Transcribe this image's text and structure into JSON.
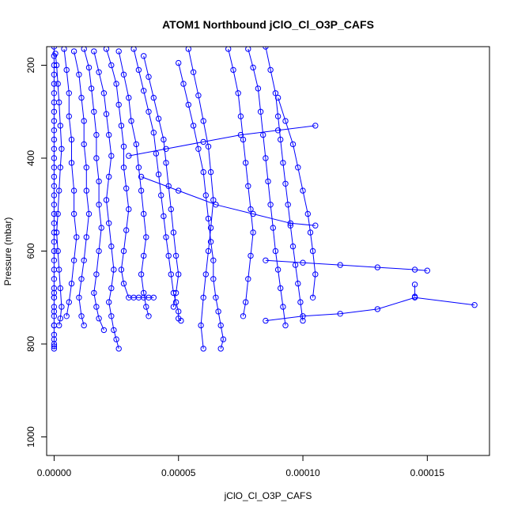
{
  "chart_data": {
    "type": "scatter",
    "title": "ATOM1 Northbound jClO_Cl_O3P_CAFS",
    "xlabel": "jClO_Cl_O3P_CAFS",
    "ylabel": "Pressure (mbar)",
    "xlim": [
      -3e-06,
      0.000175
    ],
    "ylim": [
      1040,
      160
    ],
    "y_reversed": true,
    "xticks": [
      0,
      5e-05,
      0.0001,
      0.00015
    ],
    "xtick_labels": [
      "0.00000",
      "0.00005",
      "0.00010",
      "0.00015"
    ],
    "yticks": [
      200,
      400,
      600,
      800,
      1000
    ],
    "ytick_labels": [
      "200",
      "400",
      "600",
      "800",
      "1000"
    ],
    "grid": false,
    "legend": "none",
    "color": "#0000ff",
    "marker": "open-circle",
    "series": [
      {
        "x": [
          0,
          0,
          0,
          0,
          0,
          0,
          0,
          0,
          0,
          0,
          0,
          0,
          0,
          0,
          0,
          0,
          0,
          0,
          0,
          0,
          0,
          0,
          0,
          0,
          0,
          0,
          0,
          0,
          0,
          0,
          0,
          0,
          0,
          0,
          0,
          0,
          0,
          0,
          0,
          0
        ],
        "y": [
          160,
          180,
          200,
          220,
          240,
          260,
          280,
          300,
          320,
          340,
          360,
          380,
          400,
          420,
          440,
          460,
          480,
          500,
          520,
          540,
          560,
          580,
          600,
          620,
          640,
          660,
          680,
          700,
          720,
          740,
          760,
          780,
          790,
          800,
          805,
          810,
          690,
          700,
          730,
          760
        ]
      },
      {
        "x": [
          5e-07,
          1e-06,
          1.5e-06,
          2e-06,
          2.5e-06,
          3e-06,
          2.5e-06,
          2e-06,
          1.5e-06,
          1e-06,
          1.5e-06,
          2e-06,
          2.5e-06,
          3e-06,
          2.5e-06,
          2e-06
        ],
        "y": [
          175,
          200,
          240,
          280,
          330,
          380,
          420,
          470,
          520,
          560,
          600,
          640,
          680,
          720,
          745,
          760
        ]
      },
      {
        "x": [
          4e-06,
          5e-06,
          6e-06,
          6e-06,
          7e-06,
          7e-06,
          8e-06,
          8e-06,
          9e-06,
          8e-06,
          7e-06,
          6e-06,
          5e-06
        ],
        "y": [
          165,
          210,
          260,
          310,
          360,
          410,
          470,
          520,
          570,
          620,
          670,
          710,
          740
        ]
      },
      {
        "x": [
          8e-06,
          1e-05,
          1.1e-05,
          1.2e-05,
          1.2e-05,
          1.3e-05,
          1.3e-05,
          1.4e-05,
          1.3e-05,
          1.2e-05,
          1.1e-05,
          1e-05,
          1.1e-05,
          1.2e-05
        ],
        "y": [
          170,
          220,
          270,
          320,
          370,
          420,
          470,
          520,
          570,
          620,
          660,
          700,
          740,
          760
        ]
      },
      {
        "x": [
          1.2e-05,
          1.4e-05,
          1.5e-05,
          1.6e-05,
          1.7e-05,
          1.7e-05,
          1.8e-05,
          1.8e-05,
          1.9e-05,
          1.8e-05,
          1.7e-05,
          1.6e-05,
          1.7e-05,
          1.8e-05,
          2e-05
        ],
        "y": [
          165,
          205,
          250,
          300,
          350,
          400,
          450,
          500,
          550,
          600,
          650,
          690,
          720,
          745,
          770
        ]
      },
      {
        "x": [
          1.6e-05,
          1.8e-05,
          2e-05,
          2.1e-05,
          2.2e-05,
          2.3e-05,
          2.2e-05,
          2.1e-05,
          2.2e-05,
          2.3e-05,
          2.4e-05,
          2.3e-05,
          2.2e-05,
          2.3e-05,
          2.4e-05,
          2.5e-05,
          2.6e-05
        ],
        "y": [
          170,
          215,
          260,
          305,
          350,
          395,
          440,
          490,
          540,
          590,
          640,
          680,
          710,
          740,
          770,
          790,
          810
        ]
      },
      {
        "x": [
          2.1e-05,
          2.3e-05,
          2.5e-05,
          2.6e-05,
          2.7e-05,
          2.8e-05,
          2.8e-05,
          2.9e-05,
          3e-05,
          2.9e-05,
          2.8e-05,
          2.7e-05,
          2.8e-05,
          3e-05,
          3.2e-05,
          3.4e-05,
          3.6e-05,
          3.8e-05,
          4e-05
        ],
        "y": [
          165,
          200,
          240,
          285,
          330,
          375,
          420,
          465,
          510,
          555,
          600,
          640,
          670,
          700,
          700,
          700,
          700,
          700,
          700
        ]
      },
      {
        "x": [
          2.6e-05,
          2.8e-05,
          3e-05,
          3.1e-05,
          3.3e-05,
          3.4e-05,
          3.5e-05,
          3.6e-05,
          3.7e-05,
          3.6e-05,
          3.5e-05,
          3.6e-05,
          3.7e-05,
          3.8e-05
        ],
        "y": [
          170,
          220,
          270,
          320,
          370,
          420,
          470,
          520,
          570,
          610,
          650,
          690,
          720,
          740
        ]
      },
      {
        "x": [
          3.2e-05,
          3.4e-05,
          3.6e-05,
          3.8e-05,
          4e-05,
          4.1e-05,
          4.2e-05,
          4.3e-05,
          4.4e-05,
          4.5e-05,
          4.6e-05,
          4.7e-05,
          4.8e-05,
          4.9e-05,
          5e-05,
          5e-05,
          5.1e-05
        ],
        "y": [
          165,
          210,
          255,
          300,
          345,
          390,
          435,
          480,
          525,
          570,
          610,
          650,
          690,
          710,
          730,
          745,
          750
        ]
      },
      {
        "x": [
          3.6e-05,
          3.8e-05,
          4e-05,
          4.2e-05,
          4.4e-05,
          4.5e-05,
          4.6e-05,
          4.7e-05,
          4.8e-05,
          4.9e-05,
          5e-05,
          4.9e-05,
          4.8e-05
        ],
        "y": [
          180,
          225,
          270,
          315,
          360,
          410,
          460,
          510,
          560,
          610,
          650,
          690,
          720
        ]
      },
      {
        "x": [
          5e-05,
          5.2e-05,
          5.4e-05,
          5.6e-05,
          5.8e-05,
          6e-05,
          6.1e-05,
          6.2e-05,
          6.3e-05,
          6.4e-05,
          6.4e-05,
          6.5e-05,
          6.6e-05,
          6.7e-05,
          6.8e-05,
          6.7e-05
        ],
        "y": [
          195,
          240,
          285,
          330,
          380,
          430,
          480,
          530,
          580,
          620,
          660,
          700,
          730,
          760,
          790,
          810
        ]
      },
      {
        "x": [
          5.4e-05,
          5.6e-05,
          5.8e-05,
          6e-05,
          6.2e-05,
          6.3e-05,
          6.4e-05,
          6.3e-05,
          6.2e-05,
          6.1e-05,
          6e-05,
          5.9e-05,
          6e-05
        ],
        "y": [
          165,
          215,
          265,
          320,
          375,
          430,
          490,
          550,
          600,
          650,
          700,
          760,
          810
        ]
      },
      {
        "x": [
          7e-05,
          7.2e-05,
          7.4e-05,
          7.5e-05,
          7.6e-05,
          7.7e-05,
          7.8e-05,
          7.9e-05,
          8e-05,
          7.9e-05,
          7.8e-05,
          7.7e-05,
          7.6e-05
        ],
        "y": [
          165,
          210,
          260,
          310,
          360,
          410,
          460,
          510,
          560,
          610,
          660,
          710,
          740
        ]
      },
      {
        "x": [
          7.8e-05,
          8e-05,
          8.2e-05,
          8.3e-05,
          8.4e-05,
          8.5e-05,
          8.6e-05,
          8.7e-05,
          8.8e-05,
          8.9e-05,
          9e-05,
          9.1e-05,
          9.2e-05,
          9.3e-05
        ],
        "y": [
          165,
          205,
          250,
          300,
          350,
          400,
          450,
          500,
          550,
          600,
          640,
          680,
          720,
          760
        ]
      },
      {
        "x": [
          8.5e-05,
          8.7e-05,
          8.9e-05,
          9e-05,
          9.1e-05,
          9.2e-05,
          9.3e-05,
          9.4e-05,
          9.5e-05,
          9.6e-05,
          9.7e-05,
          9.8e-05,
          9.9e-05,
          0.0001
        ],
        "y": [
          160,
          210,
          260,
          310,
          360,
          410,
          455,
          500,
          545,
          590,
          630,
          670,
          710,
          750
        ]
      },
      {
        "x": [
          9e-05,
          9.3e-05,
          9.6e-05,
          9.8e-05,
          0.0001,
          0.000102,
          0.000103,
          0.000104,
          0.000105,
          0.000104
        ],
        "y": [
          270,
          320,
          370,
          420,
          470,
          520,
          560,
          600,
          650,
          700
        ]
      },
      {
        "x": [
          3e-05,
          4.5e-05,
          6e-05,
          7.5e-05,
          9e-05,
          0.000105
        ],
        "y": [
          395,
          380,
          365,
          350,
          340,
          330
        ]
      },
      {
        "x": [
          3.5e-05,
          5e-05,
          6.5e-05,
          8e-05,
          9.5e-05,
          0.000105
        ],
        "y": [
          440,
          470,
          500,
          520,
          540,
          545
        ]
      },
      {
        "x": [
          8.5e-05,
          0.0001,
          0.000115,
          0.00013,
          0.000145,
          0.00015
        ],
        "y": [
          620,
          625,
          630,
          635,
          640,
          642
        ]
      },
      {
        "x": [
          8.5e-05,
          0.0001,
          0.000115,
          0.00013,
          0.000145,
          0.000169
        ],
        "y": [
          750,
          740,
          735,
          725,
          700,
          716
        ]
      },
      {
        "x": [
          0.000145,
          0.000145
        ],
        "y": [
          672,
          698
        ]
      }
    ]
  }
}
